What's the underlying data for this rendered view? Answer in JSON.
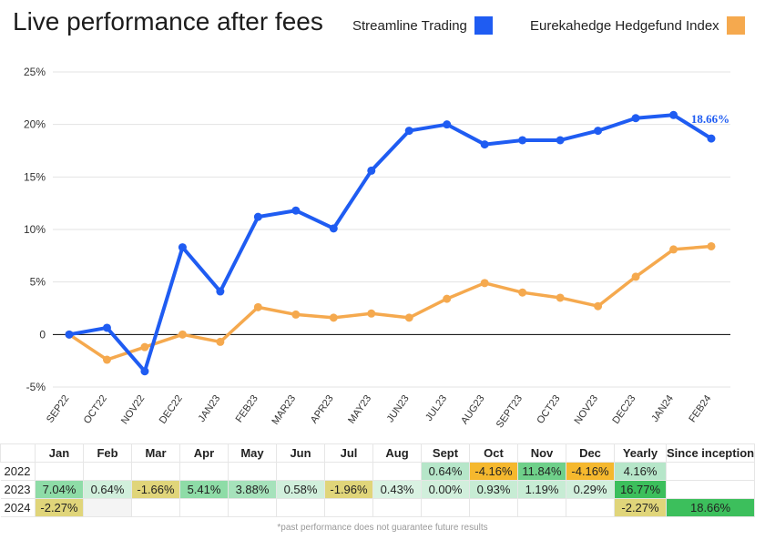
{
  "title": "Live performance after fees",
  "legend": [
    {
      "label": "Streamline Trading",
      "color": "#1f5cf2"
    },
    {
      "label": "Eurekahedge Hedgefund Index",
      "color": "#f5a94e"
    }
  ],
  "chart_data": {
    "type": "line",
    "categories": [
      "SEP22",
      "OCT22",
      "NOV22",
      "DEC22",
      "JAN23",
      "FEB23",
      "MAR23",
      "APR23",
      "MAY23",
      "JUN23",
      "JUL23",
      "AUG23",
      "SEPT23",
      "OCT23",
      "NOV23",
      "DEC23",
      "JAN24",
      "FEB24"
    ],
    "series": [
      {
        "name": "Streamline Trading",
        "color": "#1f5cf2",
        "values": [
          0.0,
          0.64,
          -3.5,
          8.3,
          4.1,
          11.2,
          11.8,
          10.1,
          15.6,
          19.4,
          20.0,
          18.1,
          18.5,
          18.5,
          19.4,
          20.6,
          20.9,
          18.66
        ]
      },
      {
        "name": "Eurekahedge Hedgefund Index",
        "color": "#f5a94e",
        "values": [
          0.0,
          -2.4,
          -1.2,
          0.0,
          -0.7,
          2.6,
          1.9,
          1.6,
          2.0,
          1.6,
          3.4,
          4.9,
          4.0,
          3.5,
          2.7,
          5.5,
          8.1,
          8.4
        ]
      }
    ],
    "y_ticks": [
      "25%",
      "20%",
      "15%",
      "10%",
      "5%",
      "0",
      "-5%"
    ],
    "ylim": [
      -5,
      25
    ],
    "grid": true,
    "annotation": {
      "text": "18.66%",
      "series": "Streamline Trading",
      "index": 17
    }
  },
  "table": {
    "headers": [
      "",
      "Jan",
      "Feb",
      "Mar",
      "Apr",
      "May",
      "Jun",
      "Jul",
      "Aug",
      "Sept",
      "Oct",
      "Nov",
      "Dec",
      "Yearly",
      "Since inception"
    ],
    "rows": [
      {
        "year": "2022",
        "cells": [
          "",
          "",
          "",
          "",
          "",
          "",
          "",
          "",
          "0.64%",
          "-4.16%",
          "11.84%",
          "-4.16%",
          "4.16%",
          ""
        ],
        "bg": [
          "",
          "",
          "",
          "",
          "",
          "",
          "",
          "",
          "#b6e6c9",
          "#f5b82e",
          "#6fd08a",
          "#f5b82e",
          "#b6e6c9",
          ""
        ]
      },
      {
        "year": "2023",
        "cells": [
          "7.04%",
          "0.64%",
          "-1.66%",
          "5.41%",
          "3.88%",
          "0.58%",
          "-1.96%",
          "0.43%",
          "0.00%",
          "0.93%",
          "1.19%",
          "0.29%",
          "16.77%",
          ""
        ],
        "bg": [
          "#8edca7",
          "#d1efdc",
          "#e0d57a",
          "#8edca7",
          "#a6e2bb",
          "#d1efdc",
          "#e0d57a",
          "#d9f2e2",
          "#d1efdc",
          "#c7ecd4",
          "#c7ecd4",
          "#d1efdc",
          "#3cbf5c",
          ""
        ]
      },
      {
        "year": "2024",
        "cells": [
          "-2.27%",
          "",
          "",
          "",
          "",
          "",
          "",
          "",
          "",
          "",
          "",
          "",
          "-2.27%",
          "18.66%"
        ],
        "bg": [
          "#e0d57a",
          "#f4f4f4",
          "",
          "",
          "",
          "",
          "",
          "",
          "",
          "",
          "",
          "",
          "#e0d57a",
          "#3cbf5c"
        ]
      }
    ],
    "note": "*past performance does not guarantee future results"
  }
}
